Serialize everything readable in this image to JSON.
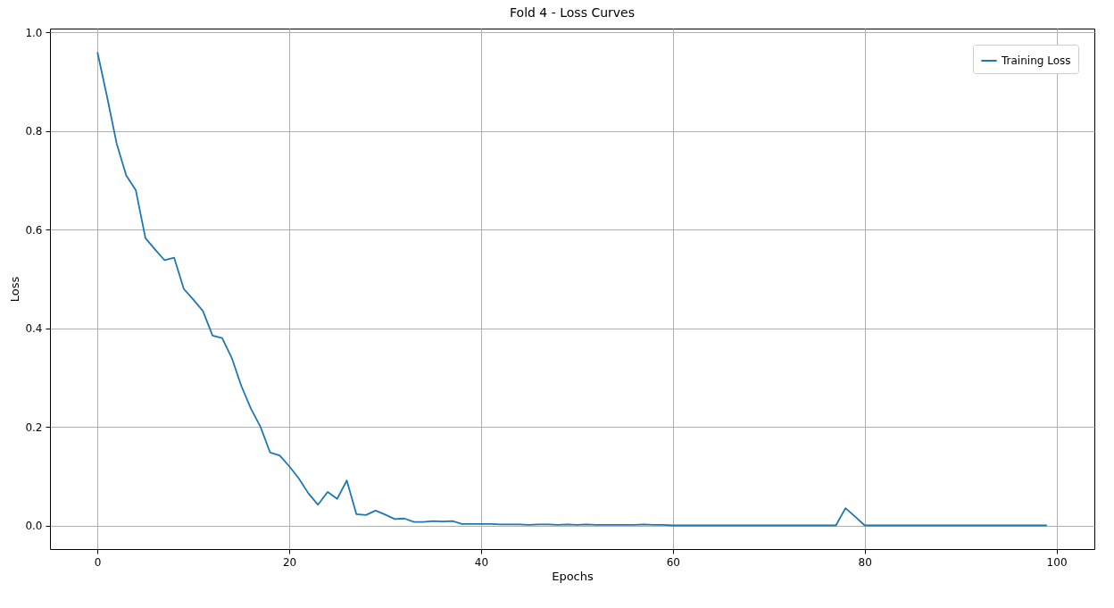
{
  "chart_data": {
    "type": "line",
    "title": "Fold 4 - Loss Curves",
    "xlabel": "Epochs",
    "ylabel": "Loss",
    "x": [
      0,
      1,
      2,
      3,
      4,
      5,
      6,
      7,
      8,
      9,
      10,
      11,
      12,
      13,
      14,
      15,
      16,
      17,
      18,
      19,
      20,
      21,
      22,
      23,
      24,
      25,
      26,
      27,
      28,
      29,
      30,
      31,
      32,
      33,
      34,
      35,
      36,
      37,
      38,
      39,
      40,
      41,
      42,
      43,
      44,
      45,
      46,
      47,
      48,
      49,
      50,
      51,
      52,
      53,
      54,
      55,
      56,
      57,
      58,
      59,
      60,
      61,
      62,
      63,
      64,
      65,
      66,
      67,
      68,
      69,
      70,
      71,
      72,
      73,
      74,
      75,
      76,
      77,
      78,
      79,
      80,
      81,
      82,
      83,
      84,
      85,
      86,
      87,
      88,
      89,
      90,
      91,
      92,
      93,
      94,
      95,
      96,
      97,
      98,
      99
    ],
    "series": [
      {
        "name": "Training Loss",
        "color": "#1f77b4",
        "values": [
          0.96,
          0.87,
          0.775,
          0.71,
          0.68,
          0.583,
          0.56,
          0.538,
          0.543,
          0.48,
          0.458,
          0.435,
          0.385,
          0.38,
          0.34,
          0.283,
          0.237,
          0.2,
          0.148,
          0.142,
          0.12,
          0.095,
          0.065,
          0.042,
          0.068,
          0.054,
          0.091,
          0.023,
          0.021,
          0.03,
          0.022,
          0.013,
          0.014,
          0.007,
          0.007,
          0.009,
          0.008,
          0.009,
          0.003,
          0.003,
          0.003,
          0.003,
          0.002,
          0.002,
          0.002,
          0.001,
          0.002,
          0.002,
          0.001,
          0.002,
          0.001,
          0.002,
          0.001,
          0.001,
          0.001,
          0.001,
          0.001,
          0.002,
          0.001,
          0.001,
          0,
          0,
          0,
          0,
          0,
          0,
          0,
          0,
          0,
          0,
          0,
          0,
          0,
          0,
          0,
          0,
          0,
          0,
          0.035,
          0.018,
          0,
          0,
          0,
          0,
          0,
          0,
          0,
          0,
          0,
          0,
          0,
          0,
          0,
          0,
          0,
          0,
          0,
          0,
          0,
          0
        ]
      }
    ],
    "xlim": [
      -4.95,
      103.95
    ],
    "ylim": [
      -0.048,
      1.008
    ],
    "xticks": [
      0,
      20,
      40,
      60,
      80,
      100
    ],
    "yticks": [
      {
        "value": 0,
        "label": "0.0"
      },
      {
        "value": 0.2,
        "label": "0.2"
      },
      {
        "value": 0.4,
        "label": "0.4"
      },
      {
        "value": 0.6,
        "label": "0.6"
      },
      {
        "value": 0.8,
        "label": "0.8"
      },
      {
        "value": 1,
        "label": "1.0"
      }
    ],
    "grid": true,
    "legend": "top right"
  }
}
